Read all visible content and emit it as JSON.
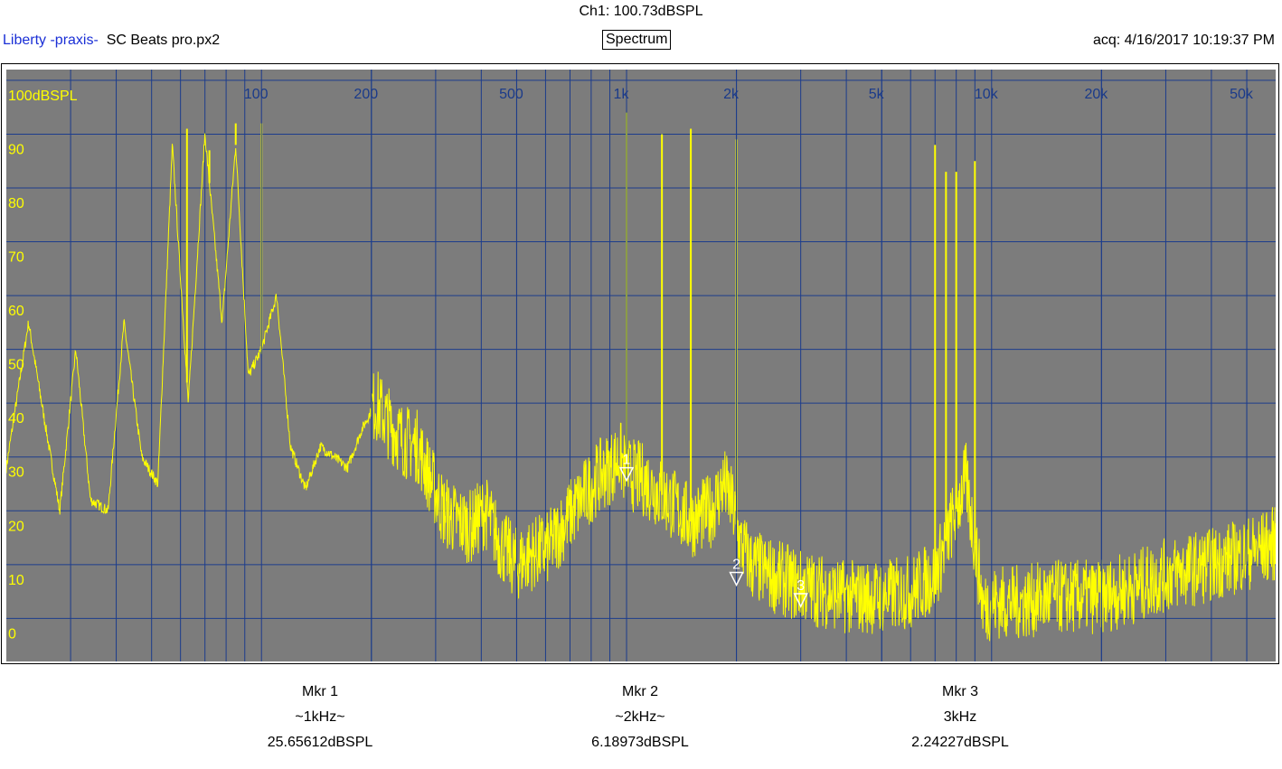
{
  "header": {
    "channel": "Ch1: 100.73dBSPL",
    "app_name": "Liberty -praxis-",
    "file_name": "SC Beats pro.px2",
    "view_label": "Spectrum",
    "acquired": "acq: 4/16/2017 10:19:37 PM"
  },
  "colors": {
    "plot_bg": "#7c7c7c",
    "grid": "#1c3c8c",
    "trace": "#ffff00",
    "freq_labels": "#1a3a8a"
  },
  "chart_data": {
    "type": "line",
    "xscale": "log",
    "xlim": [
      20,
      60000
    ],
    "ylim": [
      -8,
      102
    ],
    "x_ticks": [
      {
        "value": 100,
        "label": "100"
      },
      {
        "value": 200,
        "label": "200"
      },
      {
        "value": 500,
        "label": "500"
      },
      {
        "value": 1000,
        "label": "1k"
      },
      {
        "value": 2000,
        "label": "2k"
      },
      {
        "value": 5000,
        "label": "5k"
      },
      {
        "value": 10000,
        "label": "10k"
      },
      {
        "value": 20000,
        "label": "20k"
      },
      {
        "value": 50000,
        "label": "50k"
      }
    ],
    "y_ticks": [
      {
        "value": 100,
        "label": "100dBSPL"
      },
      {
        "value": 90,
        "label": "90"
      },
      {
        "value": 80,
        "label": "80"
      },
      {
        "value": 70,
        "label": "70"
      },
      {
        "value": 60,
        "label": "60"
      },
      {
        "value": 50,
        "label": "50"
      },
      {
        "value": 40,
        "label": "40"
      },
      {
        "value": 30,
        "label": "30"
      },
      {
        "value": 20,
        "label": "20"
      },
      {
        "value": 10,
        "label": "10"
      },
      {
        "value": 0,
        "label": "0"
      }
    ],
    "series": [
      {
        "x": [
          20,
          23,
          25,
          28,
          31,
          34,
          38,
          42,
          47,
          52,
          57,
          63,
          70,
          78,
          85,
          92,
          100,
          110,
          120,
          132,
          145,
          158,
          172,
          188,
          205,
          225,
          245,
          268,
          290,
          315,
          345,
          375,
          410,
          450,
          500,
          550,
          610,
          680,
          750,
          830,
          900,
          960,
          1000,
          1100,
          1200,
          1350,
          1500,
          1700,
          1850,
          1950,
          2050,
          2200,
          2500,
          3000,
          3500,
          4000,
          5000,
          6000,
          7000,
          7800,
          8500,
          9000,
          9500,
          10000,
          12000,
          15000,
          20000,
          25000,
          30000,
          40000,
          50000,
          60000
        ],
        "y": [
          28,
          55,
          40,
          20,
          50,
          22,
          20,
          55,
          30,
          25,
          88,
          40,
          90,
          55,
          88,
          45,
          50,
          60,
          32,
          24,
          32,
          30,
          28,
          35,
          40,
          36,
          33,
          32,
          26,
          20,
          18,
          17,
          20,
          14,
          10,
          12,
          13,
          18,
          22,
          26,
          28,
          30,
          27,
          26,
          24,
          21,
          18,
          20,
          25,
          21,
          14,
          10,
          8,
          6,
          5,
          4,
          4,
          5,
          8,
          18,
          26,
          14,
          2,
          3,
          3,
          4,
          4,
          6,
          8,
          10,
          12,
          14
        ]
      }
    ],
    "spikes": [
      {
        "x": 62.5,
        "y": 91
      },
      {
        "x": 72,
        "y": 87
      },
      {
        "x": 85,
        "y": 92
      },
      {
        "x": 100,
        "y": 92
      },
      {
        "x": 1000,
        "y": 94
      },
      {
        "x": 1250,
        "y": 90
      },
      {
        "x": 1500,
        "y": 91
      },
      {
        "x": 2000,
        "y": 89
      },
      {
        "x": 7000,
        "y": 88
      },
      {
        "x": 7500,
        "y": 83
      },
      {
        "x": 8000,
        "y": 83
      },
      {
        "x": 9000,
        "y": 85
      }
    ],
    "markers": [
      {
        "label": "1",
        "x": 1000,
        "y": 25.65612
      },
      {
        "label": "2",
        "x": 2000,
        "y": 6.18973
      },
      {
        "label": "3",
        "x": 3000,
        "y": 2.24227
      }
    ]
  },
  "marker_readouts": [
    {
      "name": "Mkr 1",
      "freq": "~1kHz~",
      "level": "25.65612dBSPL"
    },
    {
      "name": "Mkr 2",
      "freq": "~2kHz~",
      "level": "6.18973dBSPL"
    },
    {
      "name": "Mkr 3",
      "freq": "3kHz",
      "level": "2.24227dBSPL"
    }
  ]
}
